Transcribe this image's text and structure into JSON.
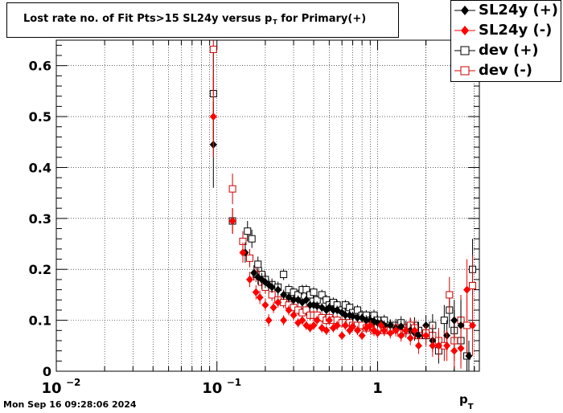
{
  "title_main": "Lost rate no. of Fit Pts>15 SL24y versus p",
  "title_sub": "T",
  "title_tail": " for Primary(+)",
  "timestamp": "Mon Sep 16 09:28:06 2024",
  "xaxis_label_main": "p",
  "xaxis_label_sub": "T",
  "legend": [
    {
      "label": "SL24y (+)",
      "color": "#000000",
      "marker": "filled-diamond"
    },
    {
      "label": "SL24y (-)",
      "color": "#ff0000",
      "marker": "filled-diamond"
    },
    {
      "label": "dev (+)",
      "color": "#000000",
      "marker": "open-square"
    },
    {
      "label": "dev (-)",
      "color": "#cc0000",
      "marker": "open-square"
    }
  ],
  "chart_data": {
    "type": "scatter",
    "title": "Lost rate no. of Fit Pts>15 SL24y versus pT for Primary(+)",
    "xlabel": "pT",
    "ylabel": "",
    "xscale": "log",
    "xlim": [
      0.01,
      4.3
    ],
    "ylim": [
      0,
      0.65
    ],
    "grid": true,
    "legend_position": "top-right",
    "x_ticks": [
      {
        "value": 0.01,
        "label_base": "10",
        "label_exp": "−2"
      },
      {
        "value": 0.1,
        "label_base": "10",
        "label_exp": "−1"
      },
      {
        "value": 1,
        "label_base": "1",
        "label_exp": ""
      }
    ],
    "y_ticks": [
      {
        "value": 0,
        "label": "0"
      },
      {
        "value": 0.1,
        "label": "0.1"
      },
      {
        "value": 0.2,
        "label": "0.2"
      },
      {
        "value": 0.3,
        "label": "0.3"
      },
      {
        "value": 0.4,
        "label": "0.4"
      },
      {
        "value": 0.5,
        "label": "0.5"
      },
      {
        "value": 0.6,
        "label": "0.6"
      }
    ],
    "series": [
      {
        "name": "SL24y (+)",
        "color": "#000000",
        "marker": "filled-diamond",
        "x": [
          0.095,
          0.125,
          0.15,
          0.17,
          0.18,
          0.19,
          0.2,
          0.21,
          0.22,
          0.24,
          0.26,
          0.28,
          0.3,
          0.32,
          0.34,
          0.36,
          0.38,
          0.4,
          0.42,
          0.45,
          0.48,
          0.5,
          0.53,
          0.56,
          0.6,
          0.63,
          0.67,
          0.7,
          0.75,
          0.8,
          0.85,
          0.9,
          0.95,
          1.0,
          1.05,
          1.1,
          1.2,
          1.3,
          1.4,
          1.5,
          1.6,
          1.7,
          1.8,
          2.0,
          2.2,
          2.4,
          2.7,
          3.0,
          3.3,
          3.7
        ],
        "y": [
          0.445,
          0.295,
          0.233,
          0.193,
          0.185,
          0.18,
          0.175,
          0.17,
          0.165,
          0.16,
          0.15,
          0.145,
          0.14,
          0.14,
          0.135,
          0.14,
          0.13,
          0.13,
          0.128,
          0.125,
          0.12,
          0.125,
          0.12,
          0.12,
          0.115,
          0.11,
          0.11,
          0.108,
          0.105,
          0.105,
          0.1,
          0.1,
          0.098,
          0.095,
          0.095,
          0.09,
          0.09,
          0.085,
          0.088,
          0.08,
          0.08,
          0.075,
          0.07,
          0.09,
          0.06,
          0.05,
          0.07,
          0.1,
          0.09,
          0.03
        ],
        "err": [
          0.085,
          0.025,
          0.02,
          0.015,
          0.015,
          0.013,
          0.012,
          0.012,
          0.011,
          0.01,
          0.01,
          0.01,
          0.01,
          0.009,
          0.009,
          0.009,
          0.009,
          0.009,
          0.009,
          0.009,
          0.009,
          0.009,
          0.009,
          0.009,
          0.009,
          0.009,
          0.009,
          0.009,
          0.009,
          0.009,
          0.01,
          0.01,
          0.01,
          0.01,
          0.01,
          0.01,
          0.011,
          0.012,
          0.012,
          0.013,
          0.014,
          0.015,
          0.016,
          0.02,
          0.022,
          0.025,
          0.03,
          0.04,
          0.05,
          0.03
        ]
      },
      {
        "name": "SL24y (-)",
        "color": "#ff0000",
        "marker": "filled-diamond",
        "x": [
          0.095,
          0.125,
          0.145,
          0.16,
          0.175,
          0.185,
          0.2,
          0.21,
          0.225,
          0.24,
          0.26,
          0.28,
          0.3,
          0.32,
          0.34,
          0.36,
          0.38,
          0.4,
          0.42,
          0.45,
          0.48,
          0.5,
          0.53,
          0.56,
          0.6,
          0.63,
          0.67,
          0.7,
          0.75,
          0.8,
          0.85,
          0.9,
          0.95,
          1.0,
          1.05,
          1.1,
          1.2,
          1.3,
          1.4,
          1.5,
          1.6,
          1.7,
          1.8,
          2.0,
          2.2,
          2.4,
          2.7,
          3.0,
          3.3,
          3.6,
          3.9
        ],
        "y": [
          0.5,
          0.295,
          0.233,
          0.18,
          0.155,
          0.145,
          0.13,
          0.1,
          0.125,
          0.135,
          0.1,
          0.12,
          0.11,
          0.095,
          0.1,
          0.09,
          0.085,
          0.09,
          0.1,
          0.085,
          0.08,
          0.1,
          0.085,
          0.09,
          0.07,
          0.09,
          0.08,
          0.088,
          0.08,
          0.07,
          0.085,
          0.09,
          0.08,
          0.075,
          0.09,
          0.08,
          0.075,
          0.08,
          0.07,
          0.08,
          0.065,
          0.08,
          0.05,
          0.07,
          0.05,
          0.05,
          0.05,
          0.04,
          0.045,
          0.16,
          0.09
        ],
        "err": [
          0.08,
          0.025,
          0.02,
          0.015,
          0.014,
          0.013,
          0.012,
          0.012,
          0.011,
          0.01,
          0.01,
          0.01,
          0.01,
          0.009,
          0.009,
          0.009,
          0.009,
          0.009,
          0.009,
          0.009,
          0.009,
          0.009,
          0.009,
          0.009,
          0.009,
          0.009,
          0.009,
          0.009,
          0.009,
          0.009,
          0.01,
          0.01,
          0.01,
          0.01,
          0.01,
          0.01,
          0.011,
          0.012,
          0.012,
          0.013,
          0.014,
          0.015,
          0.016,
          0.02,
          0.022,
          0.025,
          0.03,
          0.035,
          0.04,
          0.06,
          0.06
        ]
      },
      {
        "name": "dev (+)",
        "color": "#000000",
        "marker": "open-square",
        "x": [
          0.095,
          0.125,
          0.155,
          0.165,
          0.18,
          0.19,
          0.2,
          0.22,
          0.24,
          0.26,
          0.28,
          0.3,
          0.32,
          0.34,
          0.36,
          0.38,
          0.4,
          0.42,
          0.45,
          0.48,
          0.5,
          0.53,
          0.56,
          0.6,
          0.63,
          0.67,
          0.7,
          0.75,
          0.8,
          0.85,
          0.9,
          0.95,
          1.0,
          1.1,
          1.2,
          1.3,
          1.4,
          1.5,
          1.6,
          1.7,
          1.8,
          2.0,
          2.2,
          2.4,
          2.6,
          2.8,
          3.0,
          3.3,
          3.6,
          3.9
        ],
        "y": [
          0.545,
          0.295,
          0.275,
          0.26,
          0.21,
          0.19,
          0.18,
          0.17,
          0.165,
          0.19,
          0.16,
          0.155,
          0.15,
          0.16,
          0.16,
          0.15,
          0.155,
          0.14,
          0.15,
          0.14,
          0.13,
          0.135,
          0.13,
          0.12,
          0.13,
          0.125,
          0.115,
          0.12,
          0.11,
          0.11,
          0.1,
          0.11,
          0.1,
          0.1,
          0.09,
          0.09,
          0.095,
          0.085,
          0.09,
          0.09,
          0.08,
          0.07,
          0.09,
          0.04,
          0.1,
          0.12,
          0.08,
          0.06,
          0.03,
          0.2
        ],
        "err": [
          0.09,
          0.025,
          0.02,
          0.018,
          0.015,
          0.014,
          0.013,
          0.012,
          0.011,
          0.011,
          0.011,
          0.01,
          0.01,
          0.01,
          0.01,
          0.01,
          0.01,
          0.01,
          0.01,
          0.01,
          0.01,
          0.01,
          0.01,
          0.01,
          0.01,
          0.01,
          0.01,
          0.01,
          0.01,
          0.01,
          0.01,
          0.011,
          0.011,
          0.011,
          0.012,
          0.013,
          0.013,
          0.014,
          0.015,
          0.016,
          0.017,
          0.02,
          0.022,
          0.025,
          0.03,
          0.035,
          0.04,
          0.05,
          0.06,
          0.06
        ]
      },
      {
        "name": "dev (-)",
        "color": "#cc0000",
        "marker": "open-square",
        "x": [
          0.095,
          0.125,
          0.145,
          0.16,
          0.175,
          0.19,
          0.2,
          0.22,
          0.24,
          0.26,
          0.28,
          0.3,
          0.32,
          0.34,
          0.36,
          0.38,
          0.4,
          0.42,
          0.45,
          0.48,
          0.5,
          0.53,
          0.56,
          0.6,
          0.63,
          0.67,
          0.7,
          0.75,
          0.8,
          0.85,
          0.9,
          0.95,
          1.0,
          1.1,
          1.2,
          1.3,
          1.4,
          1.5,
          1.6,
          1.7,
          1.8,
          2.0,
          2.2,
          2.4,
          2.6,
          2.8,
          3.0,
          3.3,
          3.6,
          3.9
        ],
        "y": [
          0.632,
          0.358,
          0.255,
          0.222,
          0.19,
          0.175,
          0.165,
          0.15,
          0.14,
          0.135,
          0.13,
          0.125,
          0.12,
          0.115,
          0.12,
          0.11,
          0.11,
          0.11,
          0.105,
          0.1,
          0.105,
          0.1,
          0.1,
          0.095,
          0.095,
          0.095,
          0.09,
          0.09,
          0.09,
          0.085,
          0.09,
          0.08,
          0.085,
          0.08,
          0.08,
          0.085,
          0.075,
          0.08,
          0.09,
          0.085,
          0.07,
          0.075,
          0.07,
          0.06,
          0.05,
          0.15,
          0.06,
          0.1,
          0.09,
          0.168
        ],
        "err": [
          0.09,
          0.03,
          0.02,
          0.018,
          0.015,
          0.014,
          0.013,
          0.012,
          0.011,
          0.011,
          0.011,
          0.01,
          0.01,
          0.01,
          0.01,
          0.01,
          0.01,
          0.01,
          0.01,
          0.01,
          0.01,
          0.01,
          0.01,
          0.01,
          0.01,
          0.01,
          0.01,
          0.01,
          0.01,
          0.01,
          0.01,
          0.011,
          0.011,
          0.011,
          0.012,
          0.013,
          0.013,
          0.014,
          0.015,
          0.016,
          0.017,
          0.02,
          0.022,
          0.025,
          0.03,
          0.035,
          0.04,
          0.05,
          0.06,
          0.06
        ]
      }
    ]
  }
}
